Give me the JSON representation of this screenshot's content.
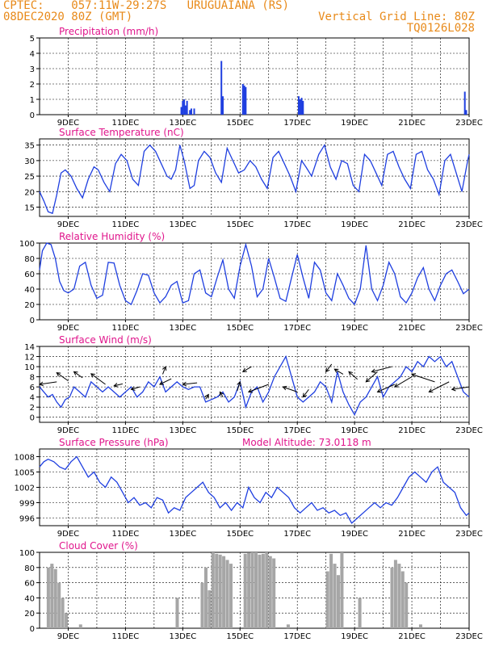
{
  "header": {
    "line1_left": "CPTEC:    057:11W-29:27S   URUGUAIANA (RS)",
    "line2_left": "08DEC2020 80Z (GMT)",
    "line1_right": "Vertical Grid Line: 80Z",
    "line2_right": "TQ0126L028"
  },
  "colors": {
    "header": "#e88a1a",
    "title": "#e0168c",
    "series": "#1f3fe0",
    "cloud": "#a6a6a6",
    "grid": "#000000"
  },
  "x_axis": {
    "start_day": 8,
    "end_day": 23,
    "tick_labels": [
      "9DEC",
      "11DEC",
      "13DEC",
      "15DEC",
      "17DEC",
      "19DEC",
      "21DEC",
      "23DEC"
    ]
  },
  "chart_data": [
    {
      "id": "precip",
      "type": "bar",
      "title": "Precipitation (mm/h)",
      "ylim": [
        0,
        5
      ],
      "yticks": [
        0,
        1,
        2,
        3,
        4,
        5
      ],
      "x": [
        12.95,
        13.0,
        13.05,
        13.1,
        13.15,
        13.25,
        13.3,
        13.4,
        14.35,
        14.4,
        15.1,
        15.15,
        15.2,
        17.05,
        17.1,
        17.15,
        17.2,
        22.85,
        22.9
      ],
      "values": [
        0.5,
        0.9,
        1.0,
        0.6,
        0.9,
        0.3,
        0.4,
        0.4,
        3.5,
        1.2,
        2.0,
        1.9,
        1.8,
        1.2,
        1.0,
        1.1,
        0.9,
        1.5,
        0.3
      ]
    },
    {
      "id": "temp",
      "type": "line",
      "title": "Surface Temperature (nC)",
      "ylim": [
        12,
        37
      ],
      "yticks": [
        15,
        20,
        25,
        30,
        35
      ],
      "x": [
        8.0,
        8.15,
        8.3,
        8.45,
        8.6,
        8.75,
        8.9,
        9.1,
        9.3,
        9.5,
        9.7,
        9.9,
        10.05,
        10.25,
        10.45,
        10.65,
        10.85,
        11.05,
        11.25,
        11.45,
        11.65,
        11.85,
        12.05,
        12.25,
        12.45,
        12.6,
        12.75,
        12.9,
        13.05,
        13.25,
        13.4,
        13.55,
        13.75,
        13.95,
        14.15,
        14.35,
        14.55,
        14.75,
        14.95,
        15.15,
        15.35,
        15.55,
        15.75,
        15.95,
        16.15,
        16.35,
        16.55,
        16.75,
        16.95,
        17.15,
        17.3,
        17.5,
        17.75,
        17.95,
        18.15,
        18.35,
        18.55,
        18.75,
        18.95,
        19.15,
        19.35,
        19.55,
        19.75,
        19.95,
        20.15,
        20.35,
        20.55,
        20.75,
        20.95,
        21.15,
        21.35,
        21.55,
        21.75,
        21.95,
        22.15,
        22.35,
        22.55,
        22.75,
        22.95,
        23.0
      ],
      "values": [
        20,
        17,
        13.5,
        13,
        19,
        26,
        27,
        25,
        21,
        18,
        24,
        28,
        27,
        23,
        20,
        29,
        32,
        30,
        24,
        22,
        33,
        35,
        33,
        29,
        25,
        24,
        27,
        35,
        30,
        21,
        22,
        30,
        33,
        31,
        26,
        23,
        34,
        30,
        26,
        27,
        30,
        28,
        24,
        21,
        31,
        33,
        29,
        25,
        20,
        30,
        28,
        25,
        32,
        35,
        28,
        24,
        30,
        29,
        22,
        20,
        32,
        30,
        26,
        22,
        32,
        33,
        28,
        24,
        21,
        32,
        33,
        27,
        24,
        19,
        30,
        32,
        26,
        20,
        30,
        32
      ]
    },
    {
      "id": "rh",
      "type": "line",
      "title": "Relative Humidity (%)",
      "ylim": [
        0,
        100
      ],
      "yticks": [
        0,
        20,
        40,
        60,
        80,
        100
      ],
      "x": [
        8.0,
        8.1,
        8.25,
        8.4,
        8.55,
        8.7,
        8.85,
        9.0,
        9.2,
        9.4,
        9.6,
        9.8,
        10.0,
        10.2,
        10.4,
        10.6,
        10.8,
        11.0,
        11.2,
        11.4,
        11.6,
        11.8,
        12.0,
        12.2,
        12.4,
        12.6,
        12.8,
        13.0,
        13.2,
        13.4,
        13.6,
        13.8,
        14.0,
        14.2,
        14.4,
        14.6,
        14.8,
        15.0,
        15.2,
        15.4,
        15.6,
        15.8,
        16.0,
        16.2,
        16.4,
        16.6,
        16.8,
        17.0,
        17.2,
        17.4,
        17.6,
        17.8,
        18.0,
        18.2,
        18.4,
        18.6,
        18.8,
        19.0,
        19.2,
        19.4,
        19.6,
        19.8,
        20.0,
        20.2,
        20.4,
        20.6,
        20.8,
        21.0,
        21.2,
        21.4,
        21.6,
        21.8,
        22.0,
        22.2,
        22.4,
        22.6,
        22.8,
        23.0
      ],
      "values": [
        65,
        90,
        100,
        98,
        80,
        50,
        38,
        35,
        40,
        70,
        75,
        45,
        28,
        32,
        75,
        74,
        45,
        25,
        20,
        38,
        60,
        58,
        35,
        22,
        30,
        45,
        50,
        22,
        25,
        60,
        65,
        35,
        30,
        55,
        78,
        40,
        28,
        70,
        98,
        70,
        30,
        40,
        80,
        55,
        28,
        24,
        55,
        85,
        55,
        28,
        75,
        65,
        35,
        25,
        60,
        45,
        28,
        20,
        40,
        97,
        40,
        25,
        45,
        75,
        60,
        30,
        22,
        35,
        55,
        68,
        40,
        25,
        45,
        60,
        65,
        50,
        34,
        40
      ]
    },
    {
      "id": "wind",
      "type": "line",
      "title": "Surface Wind (m/s)",
      "ylim": [
        -1,
        14
      ],
      "yticks": [
        0,
        2,
        4,
        6,
        8,
        10,
        12,
        14
      ],
      "x": [
        8.0,
        8.15,
        8.3,
        8.45,
        8.6,
        8.75,
        8.9,
        9.05,
        9.2,
        9.4,
        9.6,
        9.8,
        10.0,
        10.2,
        10.4,
        10.6,
        10.8,
        11.0,
        11.2,
        11.4,
        11.6,
        11.8,
        12.0,
        12.2,
        12.4,
        12.6,
        12.8,
        13.0,
        13.2,
        13.4,
        13.6,
        13.8,
        14.0,
        14.2,
        14.4,
        14.6,
        14.8,
        15.0,
        15.2,
        15.4,
        15.6,
        15.8,
        16.0,
        16.2,
        16.4,
        16.6,
        16.8,
        17.0,
        17.2,
        17.4,
        17.6,
        17.8,
        18.0,
        18.2,
        18.4,
        18.6,
        18.8,
        19.0,
        19.2,
        19.4,
        19.6,
        19.8,
        20.0,
        20.2,
        20.4,
        20.6,
        20.8,
        21.0,
        21.2,
        21.4,
        21.6,
        21.8,
        22.0,
        22.2,
        22.4,
        22.6,
        22.8,
        23.0
      ],
      "values": [
        6,
        5,
        4,
        4.5,
        3,
        2,
        3.5,
        4,
        6,
        5,
        4,
        7,
        6,
        5,
        6,
        5,
        4,
        5,
        6,
        4,
        5,
        7,
        6,
        8,
        5,
        6,
        7,
        6,
        5.5,
        6,
        6,
        3,
        3.5,
        4,
        5,
        3,
        4,
        7,
        2,
        5,
        6,
        3,
        5,
        8,
        10,
        12,
        8,
        4,
        3,
        4,
        5,
        7,
        6,
        3,
        9,
        5,
        2.5,
        0.5,
        3,
        4,
        6,
        8,
        4,
        6,
        7,
        8,
        10,
        9,
        11,
        10,
        12,
        11,
        12,
        10,
        11,
        8,
        5,
        4
      ]
    },
    {
      "id": "pres",
      "type": "line",
      "title": "Surface Pressure (hPa)",
      "subtitle": "Model Altitude: 73.0118 m",
      "ylim": [
        994.5,
        1009.5
      ],
      "yticks": [
        996,
        999,
        1002,
        1005,
        1008
      ],
      "x": [
        8.0,
        8.15,
        8.3,
        8.5,
        8.7,
        8.9,
        9.1,
        9.3,
        9.5,
        9.7,
        9.9,
        10.1,
        10.3,
        10.5,
        10.7,
        10.9,
        11.1,
        11.3,
        11.5,
        11.7,
        11.9,
        12.1,
        12.3,
        12.5,
        12.7,
        12.9,
        13.1,
        13.3,
        13.5,
        13.7,
        13.9,
        14.1,
        14.3,
        14.5,
        14.7,
        14.9,
        15.1,
        15.3,
        15.5,
        15.7,
        15.9,
        16.1,
        16.3,
        16.5,
        16.7,
        16.9,
        17.1,
        17.3,
        17.5,
        17.7,
        17.9,
        18.1,
        18.3,
        18.5,
        18.7,
        18.9,
        19.1,
        19.3,
        19.5,
        19.7,
        19.9,
        20.1,
        20.3,
        20.5,
        20.7,
        20.9,
        21.1,
        21.3,
        21.5,
        21.7,
        21.9,
        22.1,
        22.3,
        22.5,
        22.7,
        22.9,
        23.0
      ],
      "values": [
        1006,
        1007,
        1007.5,
        1007,
        1006,
        1005.5,
        1007,
        1008,
        1006,
        1004,
        1005,
        1003,
        1002,
        1004,
        1003,
        1001,
        999,
        1000,
        998.5,
        999,
        998,
        1000,
        999.5,
        997,
        998,
        997.5,
        1000,
        1001,
        1002,
        1003,
        1001,
        1000,
        998,
        999,
        997.5,
        999,
        998,
        1002,
        1000,
        999,
        1001,
        1000,
        1002,
        1001,
        1000,
        998,
        997,
        998,
        999,
        997.5,
        998,
        997,
        997.5,
        996.5,
        997,
        995,
        996,
        997,
        998,
        999,
        998,
        999,
        998.5,
        1000,
        1002,
        1004,
        1005,
        1004,
        1003,
        1005,
        1006,
        1003,
        1002,
        1001,
        998,
        996.5,
        997
      ]
    },
    {
      "id": "cloud",
      "type": "bar",
      "title": "Cloud Cover (%)",
      "ylim": [
        0,
        100
      ],
      "yticks": [
        0,
        20,
        40,
        60,
        80,
        100
      ],
      "x_step": 0.125,
      "x_start": 8.0,
      "values": [
        0,
        0,
        80,
        85,
        78,
        60,
        40,
        20,
        0,
        0,
        0,
        5,
        0,
        0,
        0,
        0,
        0,
        0,
        0,
        0,
        0,
        0,
        0,
        0,
        0,
        0,
        0,
        0,
        0,
        0,
        0,
        0,
        0,
        0,
        0,
        0,
        0,
        0,
        40,
        0,
        0,
        0,
        0,
        0,
        0,
        60,
        80,
        50,
        100,
        98,
        97,
        95,
        90,
        85,
        0,
        0,
        0,
        98,
        99,
        100,
        100,
        97,
        98,
        100,
        95,
        92,
        0,
        0,
        0,
        5,
        0,
        0,
        0,
        0,
        0,
        0,
        0,
        0,
        0,
        0,
        75,
        98,
        85,
        70,
        100,
        0,
        0,
        0,
        0,
        40,
        0,
        0,
        0,
        0,
        0,
        0,
        0,
        0,
        80,
        90,
        85,
        75,
        60,
        0,
        0,
        0,
        5,
        0,
        0,
        0,
        0,
        0,
        0,
        0,
        0,
        0,
        0,
        0,
        0,
        0,
        0,
        0,
        0,
        0,
        0,
        0,
        0
      ]
    }
  ]
}
